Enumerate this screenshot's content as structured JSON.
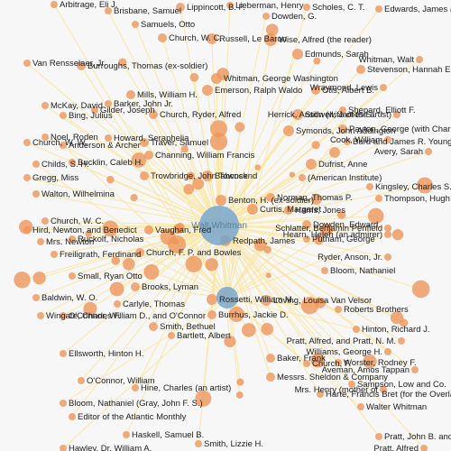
{
  "graph": {
    "colors": {
      "background": "#f7f7f7",
      "edge": "#fbe7a6",
      "node": "#ee9359",
      "hub": "#6fa3cf",
      "label": "#222222"
    },
    "hub_labels": [
      "Walt Whitman"
    ],
    "node_labels": [
      "Arbitrage, Eli J.",
      "Brisbane, Samuel",
      "Lippincott, B. F.",
      "Lieberman, Henry",
      "Dowden, G.",
      "Scholes, C. T.",
      "Edwards, James and Rome, Thomas",
      "Samuels, Otto",
      "Church, W. C.",
      "Russell, Le Baron",
      "Wise, Alfred (the reader)",
      "Edmunds, Sarah",
      "Stevenson, Hannah E.",
      "Whitman, Walt",
      "Van Rensselaer, Jr.",
      "Burroughs, Thomas (ex-soldier)",
      "Whitman, George Washington",
      "Otis, Albert B.",
      "Wraymond, Lewis",
      "Mills, William H.",
      "Emerson, Ralph Waldo",
      "Barker, John Jr.",
      "Gilder, Joseph",
      "McKay, David",
      "Bing, Julius",
      "Church, Ryder, Alfred",
      "Stillwell, James S.",
      "Shepard, Elliott F.",
      "Herrick, Anson (wife of the artist)",
      "Symonds, John Addington",
      "Payton, George (with Charles E.)",
      "Burd and James R. Young, for",
      "Cook, William",
      "Avery, Sarah",
      "Church, W. W.",
      "Anderson & Archer",
      "Noel, Roden",
      "Howard, Seraphelia",
      "Traver, Samuel",
      "Channing, William Francis",
      "Childs, S. H.",
      "Bucklin, Caleb H.",
      "Dufrist, Anne",
      "(American Institute)",
      "Gregg, Miss",
      "Trowbridge, John Townsend",
      "Babcock",
      "Kingsley, Charles S.",
      "Walton, Wilhelmina",
      "Benton, H. (ex-soldier)",
      "Thompson, Hugh B.",
      "Curtis, Margaret",
      "Norman, Thomas P.",
      "Church, W. C.",
      "Harris, Jones",
      "Dowden, Edward",
      "Schlatter, Benjamin Penfield",
      "Hird, Newton, and Benedict",
      "Vaughan, Fred",
      "Putnam, George",
      "Hearn, Helen (an admirer)",
      "Mrs. Newton",
      "Ruckolf, Nicholas",
      "Redpath, James",
      "Ryder, Anson, Jr.",
      "Church, F. P. and Bowles",
      "Freiligrath, Ferdinand",
      "Small, Ryan Otto",
      "Bloom, Nathaniel",
      "Baldwin, W. O.",
      "Brooks, Lyman",
      "Rossetti, William M.",
      "Loving, Louisa Van Velsor",
      "Wingate, Charles F.",
      "Carlyle, Thomas",
      "Roberts Brothers",
      "Smith, Bethuel",
      "Burrhus, Jackie D.",
      "O'Connor, William D., and O'Connor",
      "Bartlett, Albert",
      "Hinton, Richard J.",
      "Ellsworth, Hinton H.",
      "Williams, George H.",
      "Pratt, Alfred, and Pratt, N. M.",
      "Worster, Rodney F.",
      "Church, F.",
      "Baker, Frank",
      "Aveman, Amos Tappan",
      "O'Connor, William",
      "Sampson, Low and Co.",
      "Bloom, Nathaniel (Gray, John F. S.)",
      "Messrs. Sheldon & Company",
      "Mrs. Henry (mother of",
      "Editor of the Atlantic Monthly",
      "Hine, Charles (an artist)",
      "Walter Whitman",
      "Haskell, Samuel B.",
      "Harte, Francis Bret (for the Overland)",
      "Smith, Lizzie H.",
      "Pratt, John B. and N. M. (parents of",
      "Hawley, Dr. William A.",
      "Pratt, Alfred"
    ]
  }
}
